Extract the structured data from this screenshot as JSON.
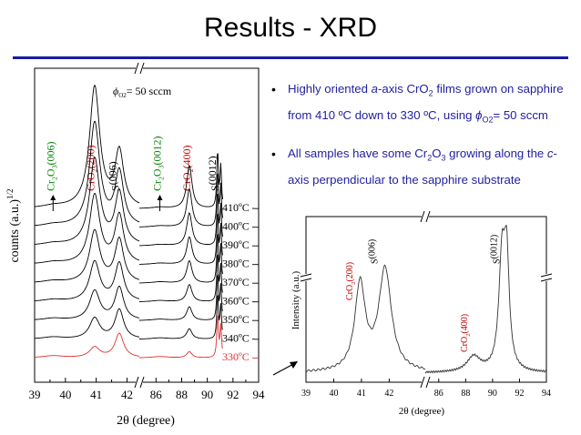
{
  "title": "Results - XRD",
  "bullets": [
    {
      "parts": [
        {
          "t": "Highly oriented "
        },
        {
          "t": "a",
          "i": true
        },
        {
          "t": "-axis CrO"
        },
        {
          "t": "2",
          "sub": true
        },
        {
          "t": " films grown on sapphire from 410 ºC down to 330 ºC, using "
        },
        {
          "t": "ϕ",
          "i": true
        },
        {
          "t": "O2",
          "sub": true
        },
        {
          "t": "= 50 sccm"
        }
      ]
    },
    {
      "parts": [
        {
          "t": "All samples have some Cr"
        },
        {
          "t": "2",
          "sub": true
        },
        {
          "t": "O"
        },
        {
          "t": "3",
          "sub": true
        },
        {
          "t": " growing along the "
        },
        {
          "t": "c",
          "i": true
        },
        {
          "t": "-axis perpendicular to the sapphire substrate"
        }
      ]
    }
  ],
  "colors": {
    "bullet_text": "#2222a0",
    "rule": "#1a1aa0",
    "cro2_label": "#c00000",
    "cr2o3_label": "#008000",
    "highlight_curve": "#e03030"
  },
  "chart_data": [
    {
      "type": "line",
      "xlabel": "2θ (degree)",
      "ylabel": "counts (a.u.)",
      "ylabel_sup": "1/2",
      "flow_label": {
        "symbol": "ϕ",
        "sub": "O2",
        "rest": "= 50 sccm"
      },
      "xlim_left": [
        39,
        42.4
      ],
      "xlim_right": [
        84.7,
        94
      ],
      "xticks_left": [
        39,
        40,
        41,
        42
      ],
      "xticks_right": [
        86,
        88,
        90,
        92,
        94
      ],
      "peak_labels": [
        {
          "chem": "Cr2O3",
          "hkl": "(006)",
          "x": 39.6,
          "color": "#008000"
        },
        {
          "chem": "CrO2",
          "hkl": "(200)",
          "x": 40.9,
          "color": "#c00000"
        },
        {
          "chem": "S",
          "hkl": "(006)",
          "x": 41.7,
          "color": "#000000"
        },
        {
          "chem": "Cr2O3",
          "hkl": "(0012)",
          "x": 86.3,
          "color": "#008000"
        },
        {
          "chem": "CrO2",
          "hkl": "(400)",
          "x": 88.6,
          "color": "#c00000"
        },
        {
          "chem": "S",
          "hkl": "(0012)",
          "x": 90.8,
          "color": "#000000"
        }
      ],
      "series": [
        {
          "name": "410ºC",
          "cro2_200": 7.0,
          "s006": 3.2,
          "cro2_400": 2.5,
          "s0012": 3.4
        },
        {
          "name": "400ºC",
          "cro2_200": 6.0,
          "s006": 3.1,
          "cro2_400": 2.2,
          "s0012": 3.3
        },
        {
          "name": "390ºC",
          "cro2_200": 5.0,
          "s006": 3.0,
          "cro2_400": 1.9,
          "s0012": 3.2
        },
        {
          "name": "380ºC",
          "cro2_200": 4.0,
          "s006": 2.8,
          "cro2_400": 1.6,
          "s0012": 3.1
        },
        {
          "name": "370ºC",
          "cro2_200": 3.0,
          "s006": 2.5,
          "cro2_400": 1.3,
          "s0012": 3.0
        },
        {
          "name": "360ºC",
          "cro2_200": 2.3,
          "s006": 2.2,
          "cro2_400": 1.0,
          "s0012": 2.9
        },
        {
          "name": "350ºC",
          "cro2_200": 1.7,
          "s006": 1.9,
          "cro2_400": 0.8,
          "s0012": 2.8
        },
        {
          "name": "340ºC",
          "cro2_200": 1.2,
          "s006": 1.7,
          "cro2_400": 0.6,
          "s0012": 2.7
        },
        {
          "name": "330ºC",
          "cro2_200": 0.6,
          "s006": 1.4,
          "cro2_400": 0.35,
          "s0012": 2.6,
          "highlight": true
        }
      ]
    },
    {
      "type": "line",
      "xlabel": "2θ (degree)",
      "ylabel": "Intensity (a.u.)",
      "xlim_left": [
        39,
        43.3
      ],
      "xlim_right": [
        85,
        94
      ],
      "xticks_left": [
        39,
        40,
        41,
        42
      ],
      "xticks_right": [
        86,
        88,
        90,
        92,
        94
      ],
      "peak_labels": [
        {
          "chem": "CrO2",
          "hkl": "(200)",
          "x": 40.9,
          "color": "#c00000"
        },
        {
          "chem": "S",
          "hkl": "(006)",
          "x": 41.8,
          "color": "#000000"
        },
        {
          "chem": "CrO2",
          "hkl": "(400)",
          "x": 88.6,
          "color": "#c00000"
        },
        {
          "chem": "S",
          "hkl": "(0012)",
          "x": 91.0,
          "color": "#000000"
        }
      ],
      "peaks": [
        {
          "x": 40.95,
          "h": 0.56,
          "w": 0.45
        },
        {
          "x": 41.85,
          "h": 0.66,
          "w": 0.55
        },
        {
          "x": 88.6,
          "h": 0.1,
          "w": 1.2
        },
        {
          "x": 90.7,
          "h": 0.71,
          "w": 0.55
        },
        {
          "x": 91.05,
          "h": 0.66,
          "w": 0.45
        }
      ]
    }
  ]
}
